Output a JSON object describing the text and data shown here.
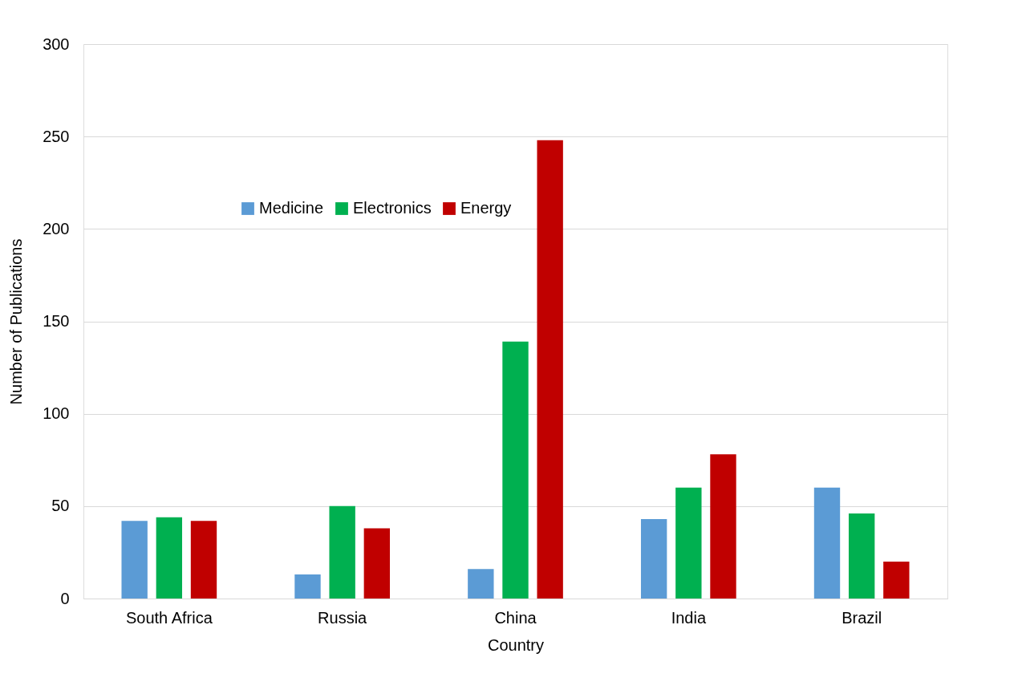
{
  "chart_data": {
    "type": "bar",
    "xlabel": "Country",
    "ylabel": "Number of Publications",
    "categories": [
      "South Africa",
      "Russia",
      "China",
      "India",
      "Brazil"
    ],
    "series": [
      {
        "name": "Medicine",
        "color": "#5b9bd5",
        "values": [
          42,
          13,
          16,
          43,
          60
        ]
      },
      {
        "name": "Electronics",
        "color": "#00b050",
        "values": [
          44,
          50,
          139,
          60,
          46
        ]
      },
      {
        "name": "Energy",
        "color": "#c00000",
        "values": [
          42,
          38,
          248,
          78,
          20
        ]
      }
    ],
    "ylim": [
      0,
      300
    ],
    "yticks": [
      0,
      50,
      100,
      150,
      200,
      250,
      300
    ],
    "grid": "y",
    "legend": "top left"
  }
}
